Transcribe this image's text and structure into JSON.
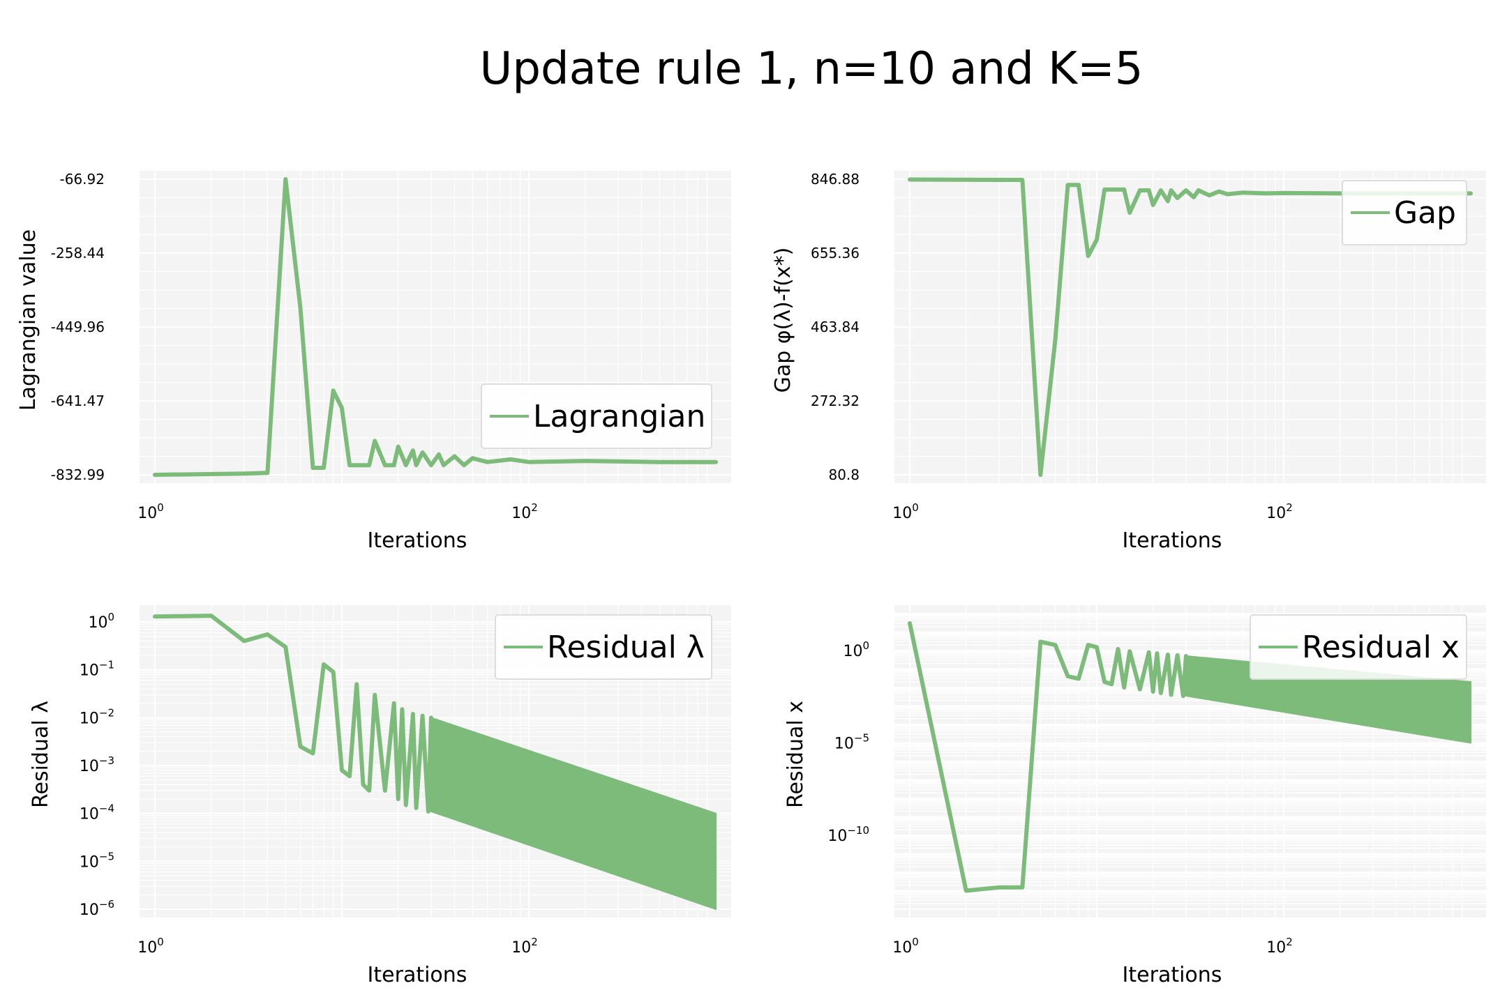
{
  "figure_title": "Update rule 1, n=10 and K=5",
  "colors": {
    "line": "#7dbb7a",
    "panel_bg": "#f4f4f4",
    "grid": "#ffffff",
    "legend_bg": "#ffffff",
    "legend_border": "#dddddd"
  },
  "chart_data": [
    {
      "type": "line",
      "id": "lagrangian",
      "xlabel": "Iterations",
      "ylabel": "Lagrangian value",
      "xscale": "log",
      "yscale": "linear",
      "xlim": [
        1,
        1000
      ],
      "ylim": [
        -832.99,
        -66.92
      ],
      "xtick_labels": [
        {
          "base": "10",
          "exp": "0",
          "value": 1
        },
        {
          "base": "10",
          "exp": "2",
          "value": 100
        }
      ],
      "ytick_labels": [
        "-66.92",
        "-258.44",
        "-449.96",
        "-641.47",
        "-832.99"
      ],
      "ytick_values": [
        -66.92,
        -258.44,
        -449.96,
        -641.47,
        -832.99
      ],
      "legend": "Lagrangian",
      "legend_position": "lower-right",
      "grid": true,
      "series": [
        {
          "name": "Lagrangian",
          "x": [
            1,
            3,
            4,
            5,
            6,
            7,
            8,
            9,
            10,
            11,
            12,
            14,
            15,
            17,
            19,
            20,
            22,
            24,
            25,
            27,
            30,
            33,
            35,
            40,
            45,
            50,
            60,
            80,
            100,
            200,
            500,
            1000
          ],
          "y": [
            -832.99,
            -830,
            -828,
            -66.92,
            -400,
            -815,
            -815,
            -615,
            -660,
            -808,
            -808,
            -808,
            -745,
            -808,
            -808,
            -760,
            -808,
            -770,
            -808,
            -775,
            -808,
            -780,
            -808,
            -785,
            -808,
            -790,
            -800,
            -793,
            -800,
            -797,
            -800,
            -800
          ]
        }
      ]
    },
    {
      "type": "line",
      "id": "gap",
      "xlabel": "Iterations",
      "ylabel": "Gap φ(λ)-f(x*)",
      "xscale": "log",
      "yscale": "linear",
      "xlim": [
        1,
        1000
      ],
      "ylim": [
        80.8,
        846.88
      ],
      "xtick_labels": [
        {
          "base": "10",
          "exp": "0",
          "value": 1
        },
        {
          "base": "10",
          "exp": "2",
          "value": 100
        }
      ],
      "ytick_labels": [
        "846.88",
        "655.36",
        "463.84",
        "272.32",
        "80.8"
      ],
      "ytick_values": [
        846.88,
        655.36,
        463.84,
        272.32,
        80.8
      ],
      "legend": "Gap",
      "legend_position": "upper-right",
      "grid": true,
      "series": [
        {
          "name": "Gap",
          "x": [
            1,
            3,
            4,
            5,
            6,
            7,
            8,
            9,
            10,
            11,
            12,
            14,
            15,
            17,
            19,
            20,
            22,
            24,
            25,
            27,
            30,
            33,
            35,
            40,
            45,
            50,
            60,
            80,
            100,
            200,
            500,
            1000
          ],
          "y": [
            846,
            845,
            845,
            80.8,
            430,
            832,
            832,
            648,
            690,
            820,
            820,
            820,
            760,
            818,
            818,
            780,
            818,
            790,
            818,
            798,
            818,
            800,
            818,
            805,
            815,
            808,
            812,
            810,
            811,
            810,
            810,
            810
          ]
        }
      ]
    },
    {
      "type": "line",
      "id": "residual-lambda",
      "xlabel": "Iterations",
      "ylabel": "Residual λ",
      "xscale": "log",
      "yscale": "log",
      "xlim": [
        1,
        1000
      ],
      "ylim": [
        1e-06,
        1.5
      ],
      "xtick_labels": [
        {
          "base": "10",
          "exp": "0",
          "value": 1
        },
        {
          "base": "10",
          "exp": "2",
          "value": 100
        }
      ],
      "ytick_labels": [
        {
          "base": "10",
          "exp": "0",
          "value": 1
        },
        {
          "base": "10",
          "exp": "−1",
          "value": 0.1
        },
        {
          "base": "10",
          "exp": "−2",
          "value": 0.01
        },
        {
          "base": "10",
          "exp": "−3",
          "value": 0.001
        },
        {
          "base": "10",
          "exp": "−4",
          "value": 0.0001
        },
        {
          "base": "10",
          "exp": "−5",
          "value": 1e-05
        },
        {
          "base": "10",
          "exp": "−6",
          "value": 1e-06
        }
      ],
      "legend": "Residual λ",
      "legend_position": "upper-right",
      "grid": true,
      "series": [
        {
          "name": "Residual λ",
          "x": [
            1,
            2,
            3,
            4,
            5,
            6,
            7,
            8,
            9,
            10,
            11,
            12,
            13,
            14,
            15,
            17,
            19,
            20,
            21,
            22,
            24,
            25,
            27,
            29,
            30
          ],
          "y": [
            1.3,
            1.35,
            0.4,
            0.55,
            0.3,
            0.0025,
            0.0018,
            0.13,
            0.09,
            0.0008,
            0.0006,
            0.05,
            0.0004,
            0.0003,
            0.03,
            0.0003,
            0.02,
            0.0002,
            0.015,
            0.00015,
            0.012,
            0.00013,
            0.011,
            0.00011,
            0.01
          ]
        },
        {
          "name": "Residual λ",
          "type": "envelope",
          "x": [
            30,
            1000
          ],
          "upper": [
            0.01,
            0.0001
          ],
          "lower": [
            0.00011,
            1e-06
          ]
        }
      ]
    },
    {
      "type": "line",
      "id": "residual-x",
      "xlabel": "Iterations",
      "ylabel": "Residual x",
      "xscale": "log",
      "yscale": "log",
      "xlim": [
        1,
        1000
      ],
      "ylim": [
        1e-14,
        100
      ],
      "xtick_labels": [
        {
          "base": "10",
          "exp": "0",
          "value": 1
        },
        {
          "base": "10",
          "exp": "2",
          "value": 100
        }
      ],
      "ytick_labels": [
        {
          "base": "10",
          "exp": "0",
          "value": 1
        },
        {
          "base": "10",
          "exp": "−5",
          "value": 1e-05
        },
        {
          "base": "10",
          "exp": "−10",
          "value": 1e-10
        }
      ],
      "legend": "Residual x",
      "legend_position": "upper-right",
      "grid": true,
      "series": [
        {
          "name": "Residual x",
          "x": [
            1,
            2,
            3,
            4,
            5,
            6,
            7,
            8,
            9,
            10,
            11,
            12,
            13,
            14,
            15,
            17,
            19,
            20,
            21,
            22,
            24,
            25,
            27,
            29,
            30
          ],
          "y": [
            30,
            1e-13,
            1.5e-13,
            1.5e-13,
            3,
            2,
            0.04,
            0.03,
            2,
            1.5,
            0.02,
            0.015,
            1.2,
            0.01,
            0.9,
            0.008,
            0.8,
            0.006,
            0.7,
            0.005,
            0.6,
            0.004,
            0.55,
            0.0035,
            0.5
          ]
        },
        {
          "name": "Residual x",
          "type": "envelope",
          "x": [
            30,
            1000
          ],
          "upper": [
            0.5,
            0.02
          ],
          "lower": [
            0.0035,
            1e-05
          ]
        }
      ]
    }
  ]
}
